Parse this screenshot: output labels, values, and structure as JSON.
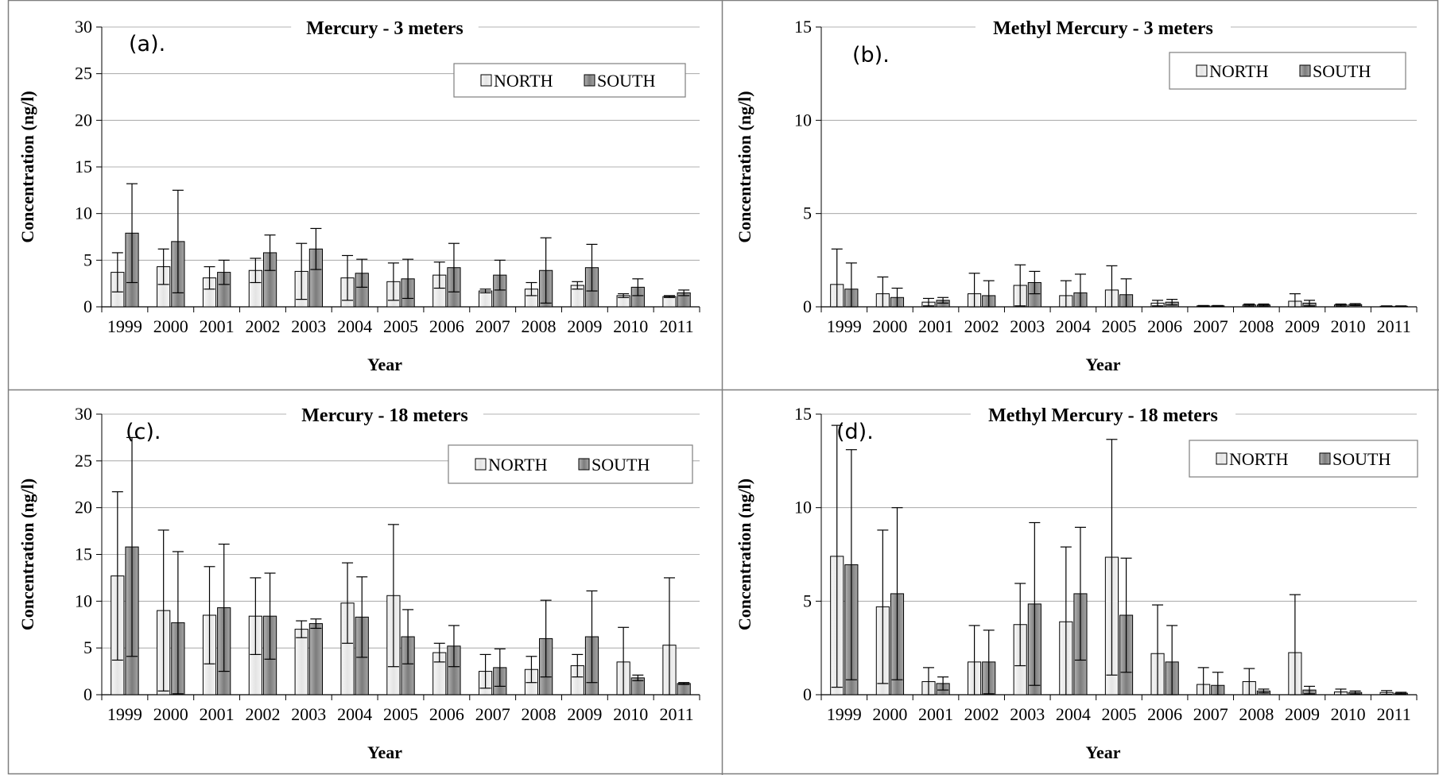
{
  "chart_data": [
    {
      "type": "bar",
      "panel_label": "(a).",
      "title": "Mercury - 3 meters",
      "xlabel": "Year",
      "ylabel": "Concentration (ng/l)",
      "ylim": [
        0,
        30
      ],
      "yticks": [
        0,
        5,
        10,
        15,
        20,
        25,
        30
      ],
      "grid": true,
      "legend": "top-right",
      "categories": [
        "1999",
        "2000",
        "2001",
        "2002",
        "2003",
        "2004",
        "2005",
        "2006",
        "2007",
        "2008",
        "2009",
        "2010",
        "2011"
      ],
      "series": [
        {
          "name": "NORTH",
          "values": [
            3.7,
            4.3,
            3.1,
            3.9,
            3.8,
            3.1,
            2.7,
            3.4,
            1.7,
            1.9,
            2.3,
            1.2,
            1.1
          ],
          "error": [
            2.1,
            1.9,
            1.2,
            1.3,
            3.0,
            2.4,
            2.0,
            1.4,
            0.2,
            0.7,
            0.4,
            0.2,
            0.1
          ]
        },
        {
          "name": "SOUTH",
          "values": [
            7.9,
            7.0,
            3.7,
            5.8,
            6.2,
            3.6,
            3.0,
            4.2,
            3.4,
            3.9,
            4.2,
            2.1,
            1.5
          ],
          "error": [
            5.3,
            5.5,
            1.3,
            1.9,
            2.2,
            1.5,
            2.1,
            2.6,
            1.6,
            3.5,
            2.5,
            0.9,
            0.3
          ]
        }
      ]
    },
    {
      "type": "bar",
      "panel_label": "(b).",
      "title": "Methyl Mercury - 3 meters",
      "xlabel": "Year",
      "ylabel": "Concentration (ng/l)",
      "ylim": [
        0,
        15
      ],
      "yticks": [
        0,
        5,
        10,
        15
      ],
      "grid": true,
      "legend": "top-right",
      "categories": [
        "1999",
        "2000",
        "2001",
        "2002",
        "2003",
        "2004",
        "2005",
        "2006",
        "2007",
        "2008",
        "2009",
        "2010",
        "2011"
      ],
      "series": [
        {
          "name": "NORTH",
          "values": [
            1.2,
            0.7,
            0.25,
            0.7,
            1.15,
            0.6,
            0.9,
            0.2,
            0.05,
            0.1,
            0.3,
            0.1,
            0.03
          ],
          "error": [
            1.9,
            0.9,
            0.2,
            1.1,
            1.1,
            0.8,
            1.3,
            0.15,
            0.02,
            0.05,
            0.4,
            0.05,
            0.02
          ]
        },
        {
          "name": "SOUTH",
          "values": [
            0.95,
            0.5,
            0.35,
            0.6,
            1.3,
            0.75,
            0.65,
            0.25,
            0.05,
            0.1,
            0.2,
            0.12,
            0.03
          ],
          "error": [
            1.4,
            0.5,
            0.15,
            0.8,
            0.6,
            1.0,
            0.85,
            0.15,
            0.02,
            0.05,
            0.15,
            0.05,
            0.02
          ]
        }
      ]
    },
    {
      "type": "bar",
      "panel_label": "(c).",
      "title": "Mercury - 18 meters",
      "xlabel": "Year",
      "ylabel": "Concentration (ng/l)",
      "ylim": [
        0,
        30
      ],
      "yticks": [
        0,
        5,
        10,
        15,
        20,
        25,
        30
      ],
      "grid": true,
      "legend": "top-right",
      "categories": [
        "1999",
        "2000",
        "2001",
        "2002",
        "2003",
        "2004",
        "2005",
        "2006",
        "2007",
        "2008",
        "2009",
        "2010",
        "2011"
      ],
      "series": [
        {
          "name": "NORTH",
          "values": [
            12.7,
            9.0,
            8.5,
            8.4,
            7.0,
            9.8,
            10.6,
            4.5,
            2.5,
            2.7,
            3.1,
            3.5,
            5.3
          ],
          "error": [
            9.0,
            8.6,
            5.2,
            4.1,
            0.9,
            4.3,
            7.6,
            1.0,
            1.8,
            1.4,
            1.2,
            3.7,
            7.2
          ]
        },
        {
          "name": "SOUTH",
          "values": [
            15.8,
            7.7,
            9.3,
            8.4,
            7.6,
            8.3,
            6.2,
            5.2,
            2.9,
            6.0,
            6.2,
            1.8,
            1.2
          ],
          "error": [
            11.7,
            7.6,
            6.8,
            4.6,
            0.5,
            4.3,
            2.9,
            2.2,
            2.0,
            4.1,
            4.9,
            0.3,
            0.1
          ]
        }
      ]
    },
    {
      "type": "bar",
      "panel_label": "(d).",
      "title": "Methyl Mercury - 18 meters",
      "xlabel": "Year",
      "ylabel": "Concentration (ng/l)",
      "ylim": [
        0,
        15
      ],
      "yticks": [
        0,
        5,
        10,
        15
      ],
      "grid": true,
      "legend": "top-right",
      "categories": [
        "1999",
        "2000",
        "2001",
        "2002",
        "2003",
        "2004",
        "2005",
        "2006",
        "2007",
        "2008",
        "2009",
        "2010",
        "2011"
      ],
      "series": [
        {
          "name": "NORTH",
          "values": [
            7.4,
            4.7,
            0.7,
            1.75,
            3.75,
            3.9,
            7.35,
            2.2,
            0.55,
            0.7,
            2.25,
            0.15,
            0.12
          ],
          "error": [
            7.0,
            4.1,
            0.75,
            1.95,
            2.2,
            4.0,
            6.3,
            2.6,
            0.9,
            0.7,
            3.1,
            0.15,
            0.1
          ]
        },
        {
          "name": "SOUTH",
          "values": [
            6.95,
            5.4,
            0.6,
            1.75,
            4.85,
            5.4,
            4.25,
            1.75,
            0.5,
            0.2,
            0.25,
            0.12,
            0.08
          ],
          "error": [
            6.15,
            4.6,
            0.35,
            1.7,
            4.35,
            3.55,
            3.05,
            1.95,
            0.7,
            0.1,
            0.2,
            0.08,
            0.05
          ]
        }
      ]
    }
  ],
  "colors": {
    "north_fill": "#ececec",
    "south_fill": "#8c8c8c",
    "grid": "#9a9a9a",
    "frame": "#7f7f7f",
    "axis": "#000000"
  }
}
